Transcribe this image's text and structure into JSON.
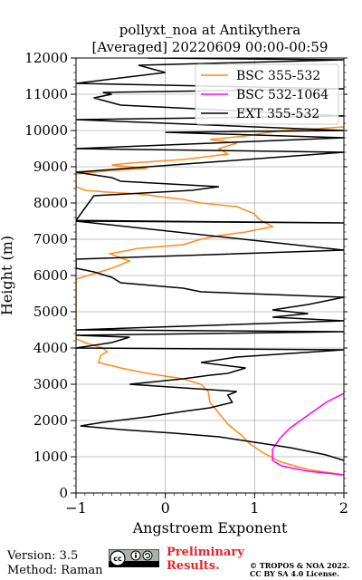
{
  "chart_data": {
    "type": "line",
    "title": "pollyxt_noa at Antikythera",
    "subtitle": "[Averaged] 20220609 00:00-00:59",
    "xlabel": "Angstroem Exponent",
    "ylabel": "Height (m)",
    "xlim": [
      -1,
      2
    ],
    "ylim": [
      0,
      12000
    ],
    "xticks": [
      -1,
      0,
      1,
      2
    ],
    "yticks": [
      0,
      1000,
      2000,
      3000,
      4000,
      5000,
      6000,
      7000,
      8000,
      9000,
      10000,
      11000,
      12000
    ],
    "grid": true,
    "legend": "top-right",
    "series": [
      {
        "name": "BSC 355-532",
        "color": "#ff8c1a",
        "points": [
          [
            2.0,
            500
          ],
          [
            1.6,
            650
          ],
          [
            1.3,
            850
          ],
          [
            1.1,
            1100
          ],
          [
            0.95,
            1350
          ],
          [
            0.85,
            1600
          ],
          [
            0.7,
            1900
          ],
          [
            0.6,
            2200
          ],
          [
            0.5,
            2500
          ],
          [
            0.48,
            2800
          ],
          [
            0.4,
            3000
          ],
          [
            0.2,
            3150
          ],
          [
            -0.2,
            3300
          ],
          [
            -0.5,
            3450
          ],
          [
            -0.75,
            3600
          ],
          [
            -0.72,
            3800
          ],
          [
            -0.65,
            3900
          ],
          [
            -0.7,
            4000
          ],
          [
            -0.9,
            4150
          ],
          [
            -1.0,
            4250
          ],
          [
            -1.0,
            5900
          ],
          [
            -0.6,
            6200
          ],
          [
            -0.4,
            6400
          ],
          [
            -0.62,
            6600
          ],
          [
            -0.3,
            6750
          ],
          [
            0.2,
            6850
          ],
          [
            0.4,
            7000
          ],
          [
            0.6,
            7100
          ],
          [
            0.9,
            7200
          ],
          [
            1.2,
            7350
          ],
          [
            1.05,
            7550
          ],
          [
            1.0,
            7700
          ],
          [
            0.8,
            7900
          ],
          [
            0.4,
            8000
          ],
          [
            0.2,
            8100
          ],
          [
            -0.3,
            8250
          ],
          [
            -0.65,
            8300
          ],
          [
            -0.9,
            8350
          ],
          [
            -1.0,
            8450
          ],
          [
            -1.0,
            8800
          ],
          [
            -0.6,
            8900
          ],
          [
            -0.2,
            8950
          ],
          [
            -0.6,
            9050
          ],
          [
            -0.4,
            9100
          ],
          [
            0.2,
            9200
          ],
          [
            0.7,
            9350
          ],
          [
            0.6,
            9500
          ],
          [
            0.8,
            9650
          ],
          [
            0.5,
            9750
          ],
          [
            0.9,
            9850
          ],
          [
            1.3,
            10000
          ],
          [
            1.7,
            10050
          ],
          [
            2.0,
            10100
          ]
        ]
      },
      {
        "name": "BSC 532-1064",
        "color": "#ff00ff",
        "points": [
          [
            2.0,
            500
          ],
          [
            1.6,
            600
          ],
          [
            1.3,
            750
          ],
          [
            1.2,
            900
          ],
          [
            1.2,
            1200
          ],
          [
            1.28,
            1500
          ],
          [
            1.4,
            1800
          ],
          [
            1.6,
            2150
          ],
          [
            1.8,
            2500
          ],
          [
            2.0,
            2750
          ]
        ]
      },
      {
        "name": "EXT 355-532",
        "color": "#000000",
        "points": [
          [
            2.0,
            900
          ],
          [
            1.8,
            1050
          ],
          [
            1.4,
            1250
          ],
          [
            1.0,
            1400
          ],
          [
            0.6,
            1550
          ],
          [
            0.1,
            1650
          ],
          [
            -0.5,
            1750
          ],
          [
            -0.95,
            1850
          ],
          [
            -0.7,
            1950
          ],
          [
            -0.2,
            2100
          ],
          [
            0.2,
            2250
          ],
          [
            0.5,
            2350
          ],
          [
            0.75,
            2500
          ],
          [
            0.7,
            2700
          ],
          [
            0.8,
            2800
          ],
          [
            0.2,
            2900
          ],
          [
            -0.4,
            3000
          ],
          [
            0.2,
            3150
          ],
          [
            0.5,
            3250
          ],
          [
            0.7,
            3300
          ],
          [
            0.9,
            3450
          ],
          [
            0.4,
            3600
          ],
          [
            0.8,
            3750
          ],
          [
            2.0,
            3950
          ],
          [
            -1.0,
            4000
          ],
          [
            -0.6,
            4150
          ],
          [
            -0.4,
            4300
          ],
          [
            -1.0,
            4350
          ],
          [
            2.0,
            4450
          ],
          [
            -1.0,
            4500
          ],
          [
            2.0,
            4750
          ],
          [
            1.2,
            4850
          ],
          [
            1.6,
            4950
          ],
          [
            1.2,
            5050
          ],
          [
            1.6,
            5200
          ],
          [
            2.0,
            5400
          ],
          [
            0.4,
            5550
          ],
          [
            0.2,
            5650
          ],
          [
            -0.5,
            5800
          ],
          [
            -0.6,
            5950
          ],
          [
            -0.8,
            6100
          ],
          [
            -1.0,
            6200
          ],
          [
            -1.0,
            6450
          ],
          [
            2.0,
            6700
          ],
          [
            -1.0,
            7500
          ],
          [
            2.0,
            7450
          ],
          [
            -1.0,
            7520
          ],
          [
            -0.8,
            8200
          ],
          [
            0.3,
            8350
          ],
          [
            0.6,
            8450
          ],
          [
            -0.5,
            8600
          ],
          [
            -0.6,
            8700
          ],
          [
            -1.0,
            8850
          ],
          [
            2.0,
            9400
          ],
          [
            -1.0,
            9500
          ],
          [
            2.0,
            9800
          ],
          [
            0.0,
            9950
          ],
          [
            2.0,
            10000
          ],
          [
            -1.0,
            10300
          ],
          [
            2.0,
            10400
          ],
          [
            -0.5,
            10700
          ],
          [
            -0.8,
            10900
          ],
          [
            -0.6,
            11000
          ],
          [
            -0.7,
            11050
          ],
          [
            2.0,
            11150
          ],
          [
            -1.0,
            11300
          ],
          [
            0.0,
            11600
          ],
          [
            -0.3,
            11800
          ],
          [
            2.0,
            11950
          ],
          [
            -0.2,
            12000
          ]
        ]
      }
    ]
  },
  "footer": {
    "version": "Version: 3.5",
    "method": "Method: Raman",
    "preliminary": [
      "Preliminary",
      "Results."
    ],
    "copyright": [
      "© TROPOS & NOA 2022.",
      "CC BY SA 4.0 License."
    ]
  },
  "icons": {
    "license_badge": "cc-by-sa-icon"
  }
}
